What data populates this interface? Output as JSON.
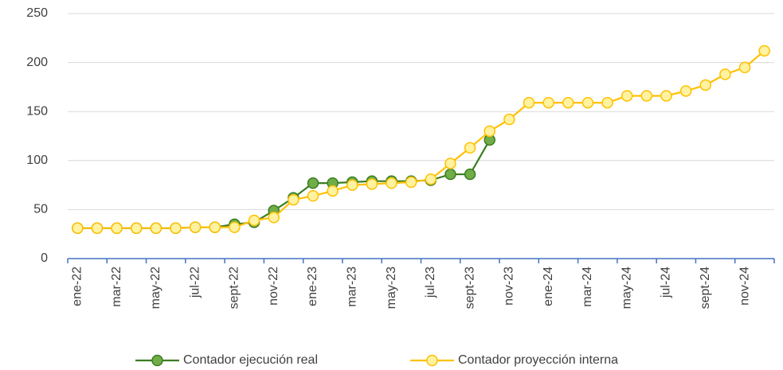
{
  "chart_data": {
    "type": "line",
    "categories": [
      "ene-22",
      null,
      "mar-22",
      null,
      "may-22",
      null,
      "jul-22",
      null,
      "sept-22",
      null,
      "nov-22",
      null,
      "ene-23",
      null,
      "mar-23",
      null,
      "may-23",
      null,
      "jul-23",
      null,
      "sept-23",
      null,
      "nov-23",
      null,
      "ene-24",
      null,
      "mar-24",
      null,
      "may-24",
      null,
      "jul-24",
      null,
      "sept-24",
      null,
      "nov-24",
      null
    ],
    "series": [
      {
        "name": "Contador ejecución real",
        "color": "#70ad47",
        "line_color": "#3b7d23",
        "values": [
          31,
          31,
          31,
          31,
          31,
          31,
          32,
          32,
          35,
          37,
          49,
          62,
          77,
          77,
          78,
          79,
          79,
          79,
          80,
          86,
          86,
          121,
          null,
          null,
          null,
          null,
          null,
          null,
          null,
          null,
          null,
          null,
          null,
          null,
          null,
          null
        ]
      },
      {
        "name": "Contador proyección interna",
        "color": "#fff2a0",
        "line_color": "#ffc000",
        "values": [
          31,
          31,
          31,
          31,
          31,
          31,
          32,
          32,
          32,
          39,
          42,
          60,
          64,
          69,
          75,
          76,
          77,
          78,
          81,
          97,
          113,
          130,
          142,
          159,
          159,
          159,
          159,
          159,
          166,
          166,
          166,
          171,
          177,
          188,
          195,
          212
        ]
      }
    ],
    "ylim": [
      0,
      250
    ],
    "yticks": [
      0,
      50,
      100,
      150,
      200,
      250
    ],
    "grid": true,
    "legend": "bottom"
  }
}
